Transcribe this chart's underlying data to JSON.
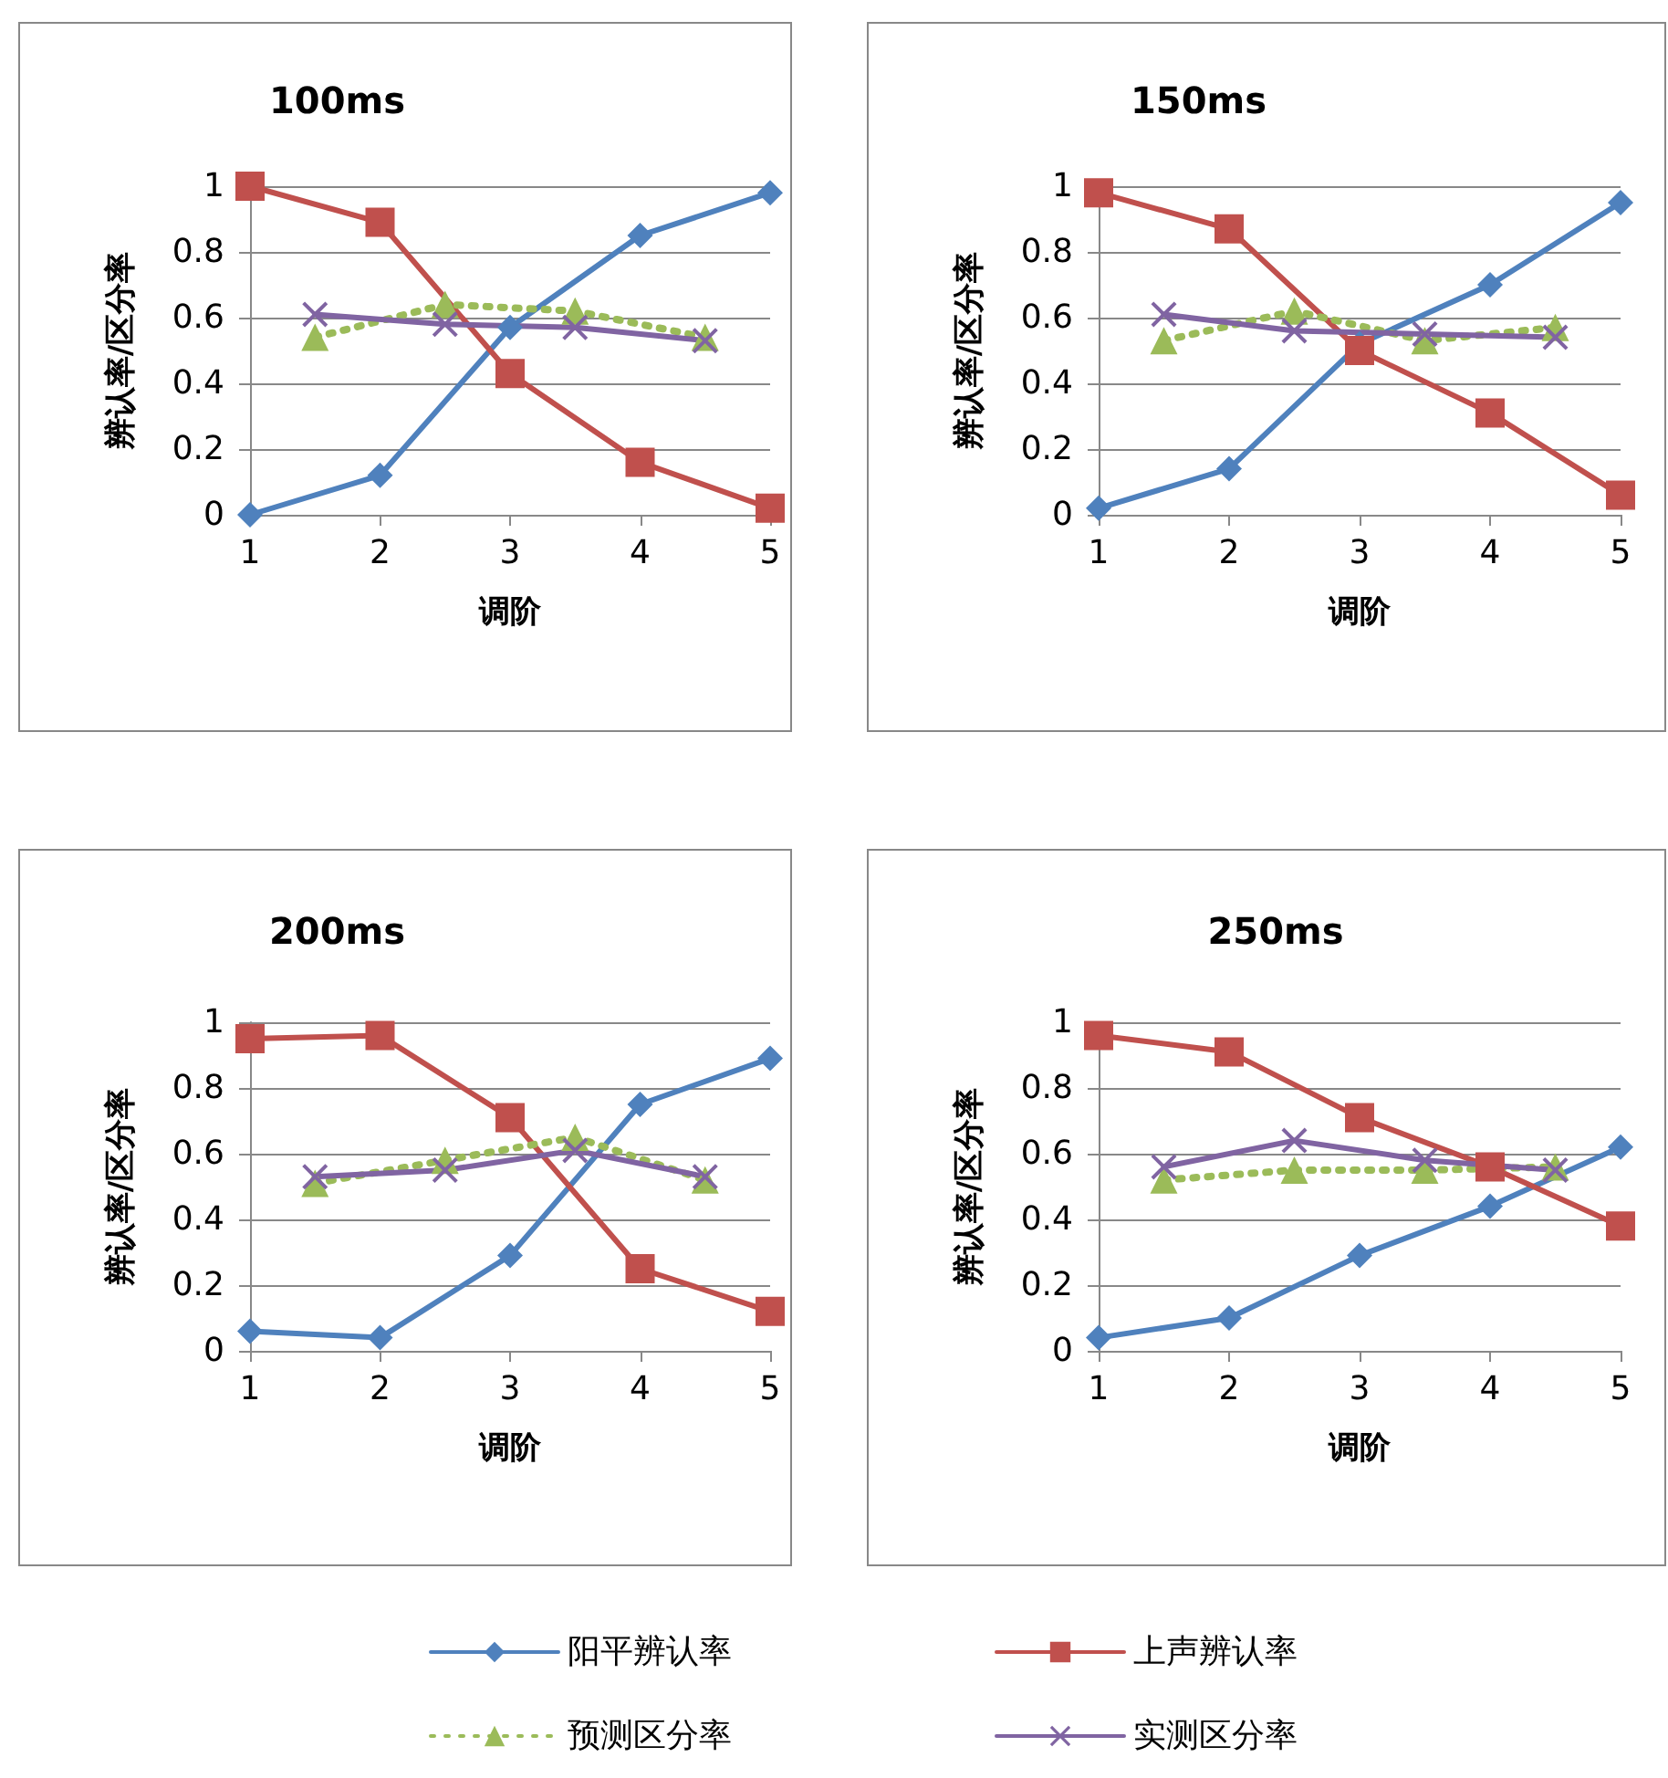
{
  "chart_data": [
    {
      "type": "line",
      "title": "100ms",
      "xlabel": "调阶",
      "ylabel": "辨认率/区分率",
      "xlim": [
        1,
        5
      ],
      "xticks": [
        1,
        2,
        3,
        4,
        5
      ],
      "ylim": [
        0,
        1
      ],
      "yticks": [
        0,
        0.2,
        0.4,
        0.6,
        0.8,
        1
      ],
      "grid": "y",
      "legend": false,
      "series": [
        {
          "color": "#4f81bd",
          "marker": "diamond",
          "line_style": "solid",
          "x": [
            1,
            2,
            3,
            4,
            5
          ],
          "values": [
            0,
            0.12,
            0.57,
            0.85,
            0.98
          ]
        },
        {
          "color": "#c0504d",
          "marker": "square",
          "line_style": "solid",
          "x": [
            1,
            2,
            3,
            4,
            5
          ],
          "values": [
            1.0,
            0.89,
            0.43,
            0.16,
            0.02
          ]
        },
        {
          "color": "#9bbb59",
          "marker": "triangle",
          "line_style": "dotted",
          "x": [
            1.5,
            2.5,
            3.5,
            4.5
          ],
          "values": [
            0.54,
            0.64,
            0.62,
            0.54
          ]
        },
        {
          "color": "#8064a2",
          "marker": "cross",
          "line_style": "solid",
          "x": [
            1.5,
            2.5,
            3.5,
            4.5
          ],
          "values": [
            0.61,
            0.58,
            0.57,
            0.53
          ]
        }
      ]
    },
    {
      "type": "line",
      "title": "150ms",
      "xlabel": "调阶",
      "ylabel": "辨认率/区分率",
      "xlim": [
        1,
        5
      ],
      "xticks": [
        1,
        2,
        3,
        4,
        5
      ],
      "ylim": [
        0,
        1
      ],
      "yticks": [
        0,
        0.2,
        0.4,
        0.6,
        0.8,
        1
      ],
      "grid": "y",
      "legend": false,
      "series": [
        {
          "color": "#4f81bd",
          "marker": "diamond",
          "line_style": "solid",
          "x": [
            1,
            2,
            3,
            4,
            5
          ],
          "values": [
            0.02,
            0.14,
            0.52,
            0.7,
            0.95
          ]
        },
        {
          "color": "#c0504d",
          "marker": "square",
          "line_style": "solid",
          "x": [
            1,
            2,
            3,
            4,
            5
          ],
          "values": [
            0.98,
            0.87,
            0.5,
            0.31,
            0.06
          ]
        },
        {
          "color": "#9bbb59",
          "marker": "triangle",
          "line_style": "dotted",
          "x": [
            1.5,
            2.5,
            3.5,
            4.5
          ],
          "values": [
            0.53,
            0.62,
            0.53,
            0.57
          ]
        },
        {
          "color": "#8064a2",
          "marker": "cross",
          "line_style": "solid",
          "x": [
            1.5,
            2.5,
            3.5,
            4.5
          ],
          "values": [
            0.61,
            0.56,
            0.55,
            0.54
          ]
        }
      ]
    },
    {
      "type": "line",
      "title": "200ms",
      "xlabel": "调阶",
      "ylabel": "辨认率/区分率",
      "xlim": [
        1,
        5
      ],
      "xticks": [
        1,
        2,
        3,
        4,
        5
      ],
      "ylim": [
        0,
        1
      ],
      "yticks": [
        0,
        0.2,
        0.4,
        0.6,
        0.8,
        1
      ],
      "grid": "y",
      "legend": false,
      "series": [
        {
          "color": "#4f81bd",
          "marker": "diamond",
          "line_style": "solid",
          "x": [
            1,
            2,
            3,
            4,
            5
          ],
          "values": [
            0.06,
            0.04,
            0.29,
            0.75,
            0.89
          ]
        },
        {
          "color": "#c0504d",
          "marker": "square",
          "line_style": "solid",
          "x": [
            1,
            2,
            3,
            4,
            5
          ],
          "values": [
            0.95,
            0.96,
            0.71,
            0.25,
            0.12
          ]
        },
        {
          "color": "#9bbb59",
          "marker": "triangle",
          "line_style": "dotted",
          "x": [
            1.5,
            2.5,
            3.5,
            4.5
          ],
          "values": [
            0.51,
            0.58,
            0.65,
            0.52
          ]
        },
        {
          "color": "#8064a2",
          "marker": "cross",
          "line_style": "solid",
          "x": [
            1.5,
            2.5,
            3.5,
            4.5
          ],
          "values": [
            0.53,
            0.55,
            0.61,
            0.53
          ]
        }
      ]
    },
    {
      "type": "line",
      "title": "250ms",
      "xlabel": "调阶",
      "ylabel": "辨认率/区分率",
      "xlim": [
        1,
        5
      ],
      "xticks": [
        1,
        2,
        3,
        4,
        5
      ],
      "ylim": [
        0,
        1
      ],
      "yticks": [
        0,
        0.2,
        0.4,
        0.6,
        0.8,
        1
      ],
      "grid": "y",
      "legend": "bottom",
      "series": [
        {
          "name": "阳平辨认率",
          "color": "#4f81bd",
          "marker": "diamond",
          "line_style": "solid",
          "x": [
            1,
            2,
            3,
            4,
            5
          ],
          "values": [
            0.04,
            0.1,
            0.29,
            0.44,
            0.62
          ]
        },
        {
          "name": "上声辨认率",
          "color": "#c0504d",
          "marker": "square",
          "line_style": "solid",
          "x": [
            1,
            2,
            3,
            4,
            5
          ],
          "values": [
            0.96,
            0.91,
            0.71,
            0.56,
            0.38
          ]
        },
        {
          "name": "预测区分率",
          "color": "#9bbb59",
          "marker": "triangle",
          "line_style": "dotted",
          "x": [
            1.5,
            2.5,
            3.5,
            4.5
          ],
          "values": [
            0.52,
            0.55,
            0.55,
            0.56
          ]
        },
        {
          "name": "实测区分率",
          "color": "#8064a2",
          "marker": "cross",
          "line_style": "solid",
          "x": [
            1.5,
            2.5,
            3.5,
            4.5
          ],
          "values": [
            0.56,
            0.64,
            0.58,
            0.55
          ]
        }
      ]
    }
  ]
}
